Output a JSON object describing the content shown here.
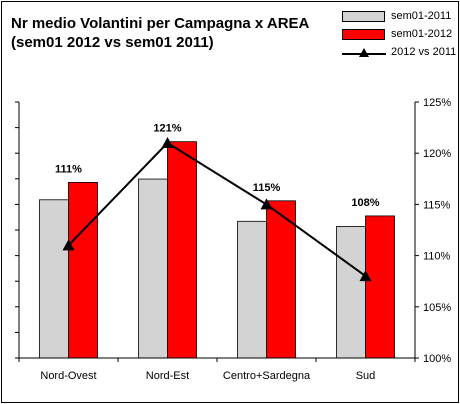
{
  "chart_data": {
    "type": "bar",
    "title_line1": "Nr medio Volantini per Campagna x AREA",
    "title_line2": "(sem01 2012 vs sem01 2011)",
    "categories": [
      "Nord-Ovest",
      "Nord-Est",
      "Centro+Sardegna",
      "Sud"
    ],
    "series": [
      {
        "name": "sem01-2011",
        "type": "bar",
        "axis": "left",
        "values": [
          61.8,
          69.9,
          53.4,
          51.4
        ],
        "color": "#d3d3d3"
      },
      {
        "name": "sem01-2012",
        "type": "bar",
        "axis": "left",
        "values": [
          68.6,
          84.5,
          61.4,
          55.5
        ],
        "color": "#ff0000"
      },
      {
        "name": "2012 vs 2011",
        "type": "line",
        "axis": "right",
        "values": [
          1.11,
          1.21,
          1.15,
          1.08
        ],
        "color": "#000000",
        "marker": "triangle"
      }
    ],
    "data_labels": [
      "111%",
      "121%",
      "115%",
      "108%"
    ],
    "left_axis": {
      "ylim": [
        0,
        100
      ],
      "tick_step": 10,
      "tick_labels_visible": false
    },
    "right_axis": {
      "ylim": [
        1.0,
        1.25
      ],
      "tick_labels": [
        "100%",
        "105%",
        "110%",
        "115%",
        "120%",
        "125%"
      ]
    },
    "legend_position": "top-right",
    "grid": false
  }
}
